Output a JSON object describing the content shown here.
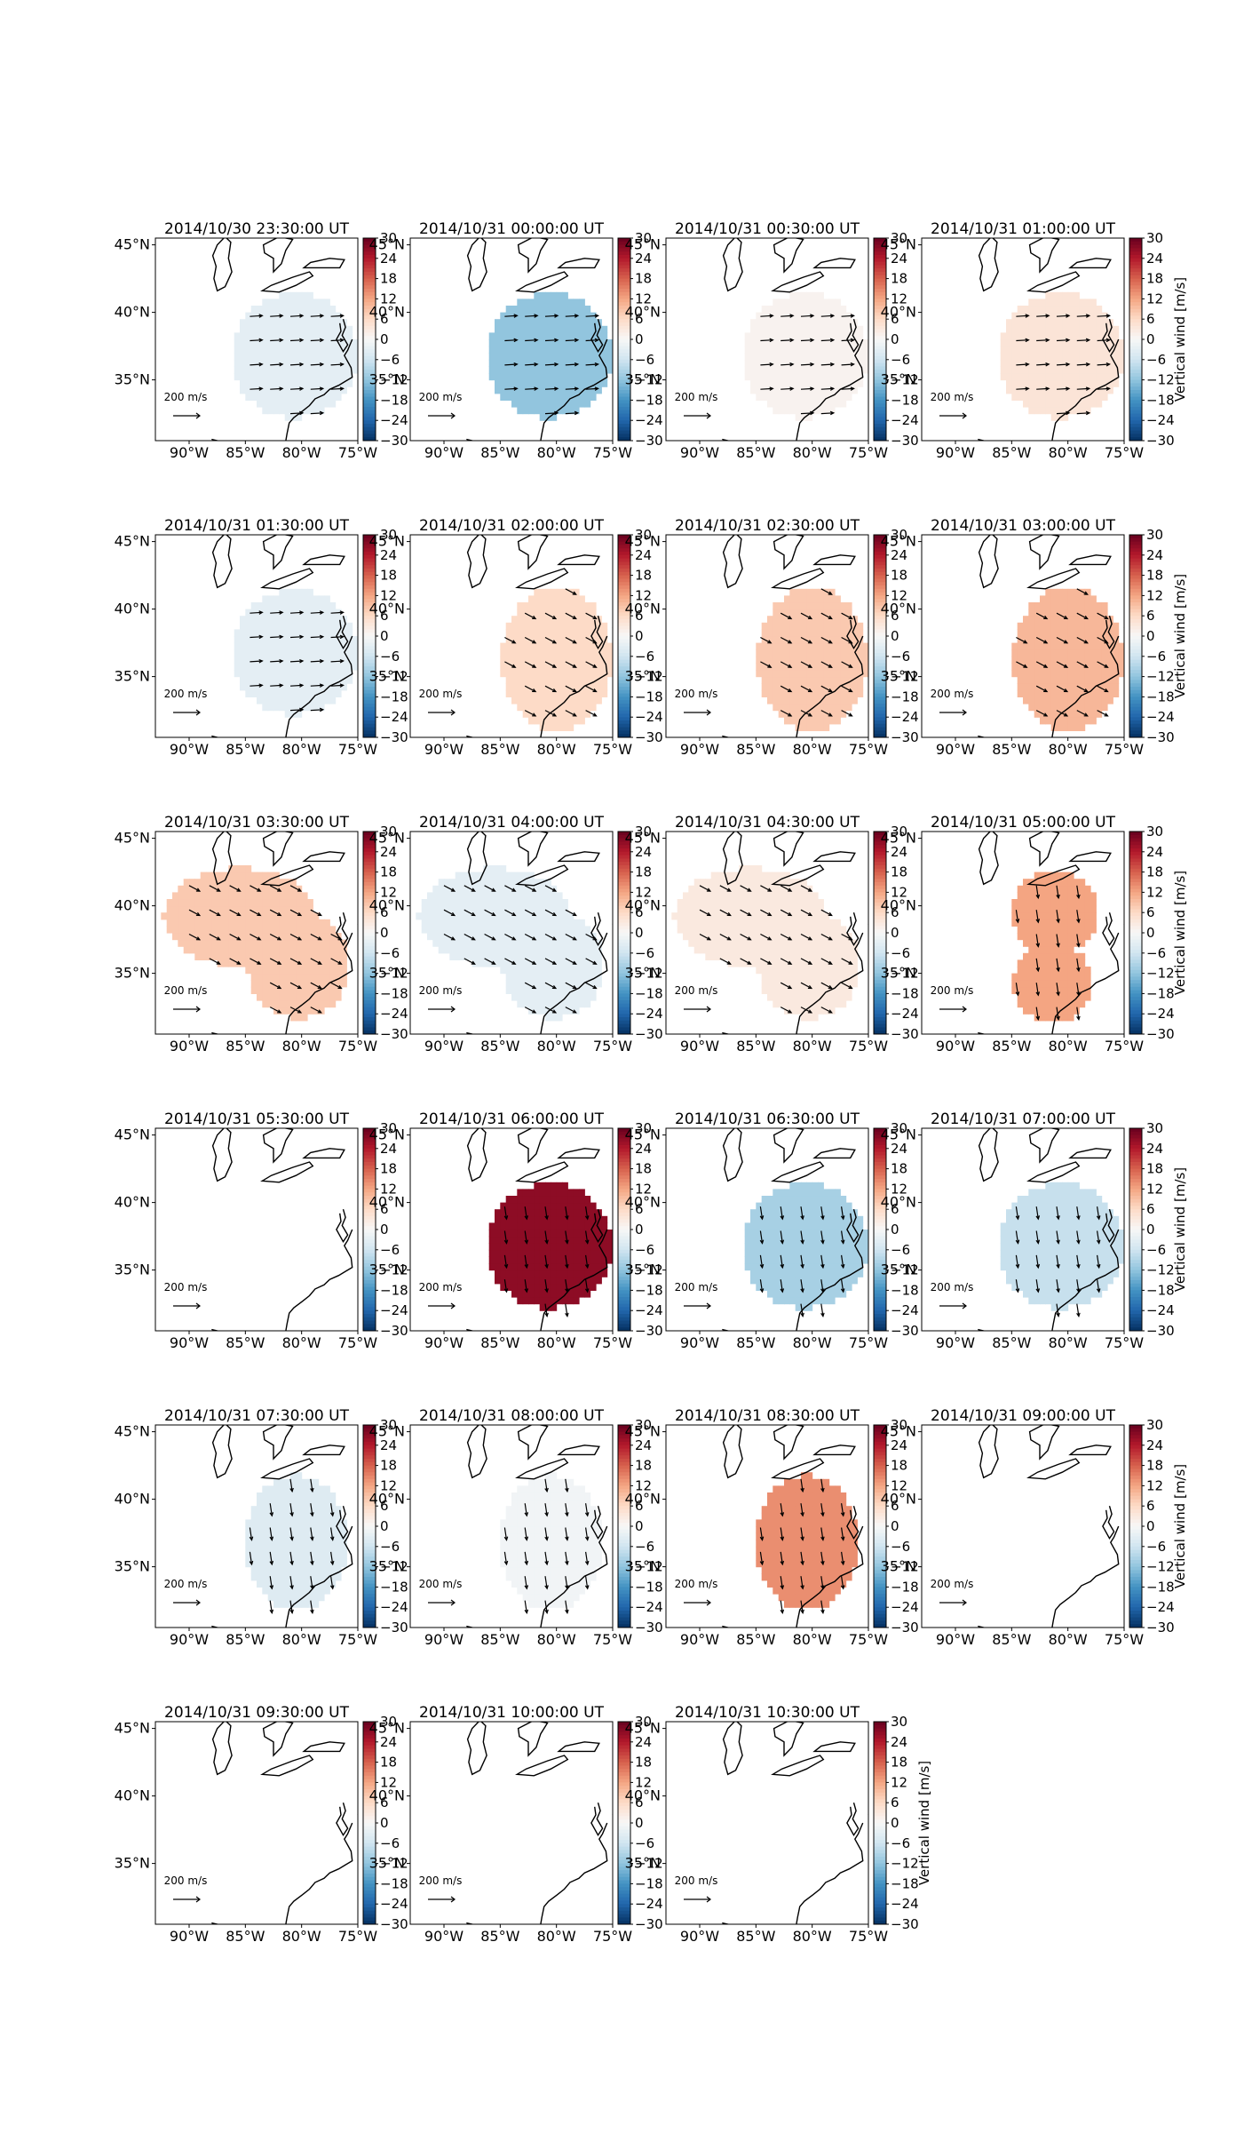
{
  "figure": {
    "colorbar_label": "Vertical wind [m/s]",
    "colorbar_ticks": [
      "30",
      "24",
      "18",
      "12",
      "6",
      "0",
      "−6",
      "−12",
      "−18",
      "−24",
      "−30"
    ],
    "x_tick_labels": [
      "90°W",
      "85°W",
      "80°W",
      "75°W"
    ],
    "y_tick_labels": [
      "45°N",
      "40°N",
      "35°N"
    ],
    "reference_arrow_label": "200 m/s",
    "colormap": [
      "#053061",
      "#2166ac",
      "#4393c3",
      "#92c5de",
      "#d1e5f0",
      "#f7f7f7",
      "#fddbc7",
      "#f4a582",
      "#d6604d",
      "#b2182b",
      "#67001f"
    ]
  },
  "chart_data": {
    "type": "map",
    "xlim": [
      -93,
      -75
    ],
    "ylim": [
      30.5,
      45.5
    ],
    "clim": [
      -30,
      30
    ],
    "panels": [
      {
        "title": "2014/10/30 23:30:00 UT",
        "value": -3,
        "shape": "blob",
        "arrows": "east"
      },
      {
        "title": "2014/10/31 00:00:00 UT",
        "value": -12,
        "shape": "blob",
        "arrows": "east"
      },
      {
        "title": "2014/10/31 00:30:00 UT",
        "value": 1,
        "shape": "blob",
        "arrows": "east"
      },
      {
        "title": "2014/10/31 01:00:00 UT",
        "value": 4,
        "shape": "blob",
        "arrows": "east"
      },
      {
        "title": "2014/10/31 01:30:00 UT",
        "value": -3,
        "shape": "blob",
        "arrows": "east"
      },
      {
        "title": "2014/10/31 02:00:00 UT",
        "value": 6,
        "shape": "south",
        "arrows": "southeast"
      },
      {
        "title": "2014/10/31 02:30:00 UT",
        "value": 8,
        "shape": "south",
        "arrows": "southeast"
      },
      {
        "title": "2014/10/31 03:00:00 UT",
        "value": 10,
        "shape": "south",
        "arrows": "southeast"
      },
      {
        "title": "2014/10/31 03:30:00 UT",
        "value": 8,
        "shape": "wide",
        "arrows": "southeast"
      },
      {
        "title": "2014/10/31 04:00:00 UT",
        "value": -3,
        "shape": "wide",
        "arrows": "southeast"
      },
      {
        "title": "2014/10/31 04:30:00 UT",
        "value": 3,
        "shape": "wide",
        "arrows": "southeast"
      },
      {
        "title": "2014/10/31 05:00:00 UT",
        "value": 12,
        "shape": "double",
        "arrows": "south"
      },
      {
        "title": "2014/10/31 05:30:00 UT",
        "value": null,
        "shape": "none",
        "arrows": "none"
      },
      {
        "title": "2014/10/31 06:00:00 UT",
        "value": 27,
        "shape": "blob",
        "arrows": "south"
      },
      {
        "title": "2014/10/31 06:30:00 UT",
        "value": -10,
        "shape": "blob",
        "arrows": "south"
      },
      {
        "title": "2014/10/31 07:00:00 UT",
        "value": -7,
        "shape": "blob",
        "arrows": "south"
      },
      {
        "title": "2014/10/31 07:30:00 UT",
        "value": -4,
        "shape": "narrow",
        "arrows": "south"
      },
      {
        "title": "2014/10/31 08:00:00 UT",
        "value": -1,
        "shape": "narrow",
        "arrows": "south"
      },
      {
        "title": "2014/10/31 08:30:00 UT",
        "value": 14,
        "shape": "narrow",
        "arrows": "south"
      },
      {
        "title": "2014/10/31 09:00:00 UT",
        "value": null,
        "shape": "none",
        "arrows": "none"
      },
      {
        "title": "2014/10/31 09:30:00 UT",
        "value": null,
        "shape": "none",
        "arrows": "none"
      },
      {
        "title": "2014/10/31 10:00:00 UT",
        "value": null,
        "shape": "none",
        "arrows": "none"
      },
      {
        "title": "2014/10/31 10:30:00 UT",
        "value": null,
        "shape": "none",
        "arrows": "none"
      }
    ]
  }
}
